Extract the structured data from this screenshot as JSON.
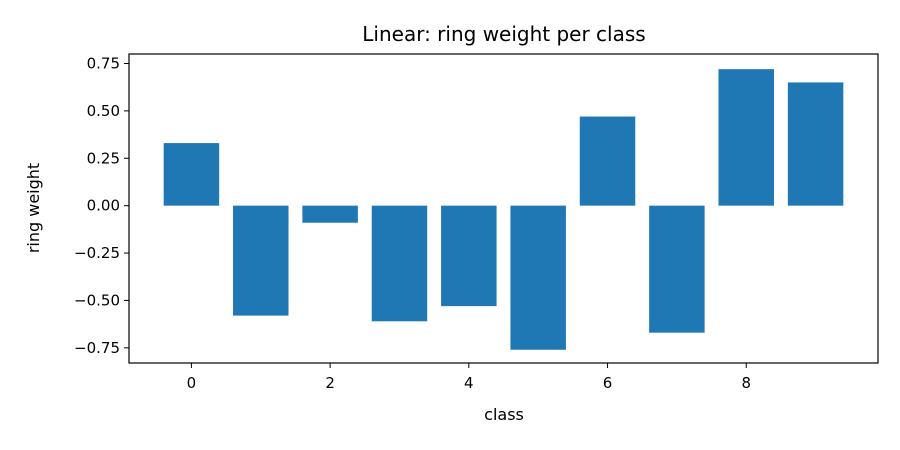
{
  "chart_data": {
    "type": "bar",
    "title": "Linear: ring weight per class",
    "xlabel": "class",
    "ylabel": "ring weight",
    "categories": [
      0,
      1,
      2,
      3,
      4,
      5,
      6,
      7,
      8,
      9
    ],
    "values": [
      0.33,
      -0.58,
      -0.09,
      -0.61,
      -0.53,
      -0.76,
      0.47,
      -0.67,
      0.72,
      0.65
    ],
    "xlim": [
      -0.9,
      9.9
    ],
    "ylim": [
      -0.83,
      0.8
    ],
    "xticks": [
      0,
      2,
      4,
      6,
      8
    ],
    "xtick_labels": [
      "0",
      "2",
      "4",
      "6",
      "8"
    ],
    "yticks": [
      0.75,
      0.5,
      0.25,
      0.0,
      -0.25,
      -0.5,
      -0.75
    ],
    "ytick_labels": [
      "0.75",
      "0.50",
      "0.25",
      "0.00",
      "−0.25",
      "−0.50",
      "−0.75"
    ],
    "bar_color": "#1f77b4",
    "grid": false,
    "legend": "none"
  }
}
